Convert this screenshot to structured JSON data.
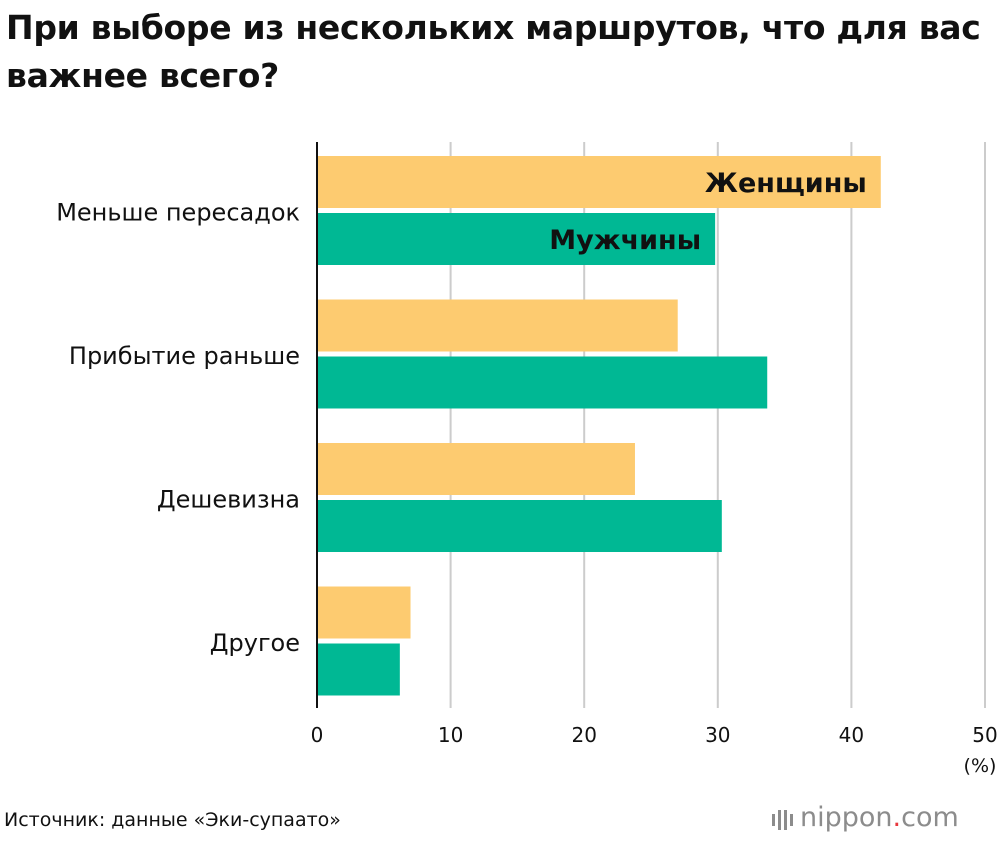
{
  "chart_data": {
    "type": "bar",
    "orientation": "horizontal",
    "title": "При выборе из нескольких маршрутов, что для вас важнее всего?",
    "categories": [
      "Меньше пересадок",
      "Прибытие раньше",
      "Дешевизна",
      "Другое"
    ],
    "series": [
      {
        "name": "Женщины",
        "color": "#fdcb70",
        "values": [
          42.2,
          27.0,
          23.8,
          7.0
        ]
      },
      {
        "name": "Мужчины",
        "color": "#00b894",
        "values": [
          29.8,
          33.7,
          30.3,
          6.2
        ]
      }
    ],
    "xlim": [
      0,
      50
    ],
    "xticks": [
      "0",
      "10",
      "20",
      "30",
      "40",
      "50"
    ],
    "xunit": "(%)",
    "grid": true,
    "gridColor": "#cccccc"
  },
  "source": "Источник: данные «Эки-супаато»",
  "logo": {
    "name": "nippon",
    "dot": ".",
    "suffix": "com"
  }
}
